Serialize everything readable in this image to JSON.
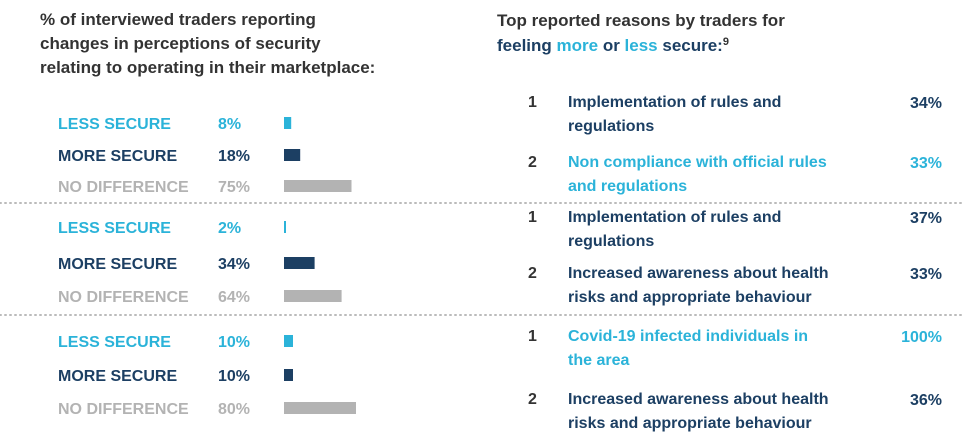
{
  "colors": {
    "less": "#2bb3d9",
    "more": "#1c3f63",
    "none": "#b3b3b3"
  },
  "left": {
    "title_lines": [
      "% of interviewed traders reporting",
      "changes in perceptions of security",
      "relating to operating in their marketplace:"
    ],
    "groups": [
      {
        "rows": [
          {
            "label": "LESS SECURE",
            "value": 8,
            "value_label": "8%",
            "tone": "less"
          },
          {
            "label": "MORE SECURE",
            "value": 18,
            "value_label": "18%",
            "tone": "more"
          },
          {
            "label": "NO DIFFERENCE",
            "value": 75,
            "value_label": "75%",
            "tone": "none"
          }
        ]
      },
      {
        "rows": [
          {
            "label": "LESS SECURE",
            "value": 2,
            "value_label": "2%",
            "tone": "less"
          },
          {
            "label": "MORE SECURE",
            "value": 34,
            "value_label": "34%",
            "tone": "more"
          },
          {
            "label": "NO DIFFERENCE",
            "value": 64,
            "value_label": "64%",
            "tone": "none"
          }
        ]
      },
      {
        "rows": [
          {
            "label": "LESS SECURE",
            "value": 10,
            "value_label": "10%",
            "tone": "less"
          },
          {
            "label": "MORE SECURE",
            "value": 10,
            "value_label": "10%",
            "tone": "more"
          },
          {
            "label": "NO DIFFERENCE",
            "value": 80,
            "value_label": "80%",
            "tone": "none"
          }
        ]
      }
    ]
  },
  "right": {
    "title_line1": "Top reported reasons by traders for",
    "title_parts": [
      {
        "text": "feeling ",
        "tone": "more"
      },
      {
        "text": "more",
        "tone": "less"
      },
      {
        "text": " or ",
        "tone": "more"
      },
      {
        "text": "less",
        "tone": "less"
      },
      {
        "text": " secure:",
        "tone": "more"
      }
    ],
    "footnote": "9",
    "groups": [
      {
        "rows": [
          {
            "rank": 1,
            "text_lines": [
              "Implementation of rules and",
              "regulations"
            ],
            "value": 34,
            "value_label": "34%",
            "tone": "more"
          },
          {
            "rank": 2,
            "text_lines": [
              "Non compliance with official rules",
              "and regulations"
            ],
            "value": 33,
            "value_label": "33%",
            "tone": "less"
          }
        ]
      },
      {
        "rows": [
          {
            "rank": 1,
            "text_lines": [
              "Implementation of rules and",
              "regulations"
            ],
            "value": 37,
            "value_label": "37%",
            "tone": "more"
          },
          {
            "rank": 2,
            "text_lines": [
              "Increased awareness about health",
              "risks and appropriate behaviour"
            ],
            "value": 33,
            "value_label": "33%",
            "tone": "more"
          }
        ]
      },
      {
        "rows": [
          {
            "rank": 1,
            "text_lines": [
              "Covid-19 infected individuals in",
              "the area"
            ],
            "value": 100,
            "value_label": "100%",
            "tone": "less"
          },
          {
            "rank": 2,
            "text_lines": [
              "Increased awareness about health",
              "risks and appropriate behaviour"
            ],
            "value": 36,
            "value_label": "36%",
            "tone": "more"
          }
        ]
      }
    ]
  }
}
